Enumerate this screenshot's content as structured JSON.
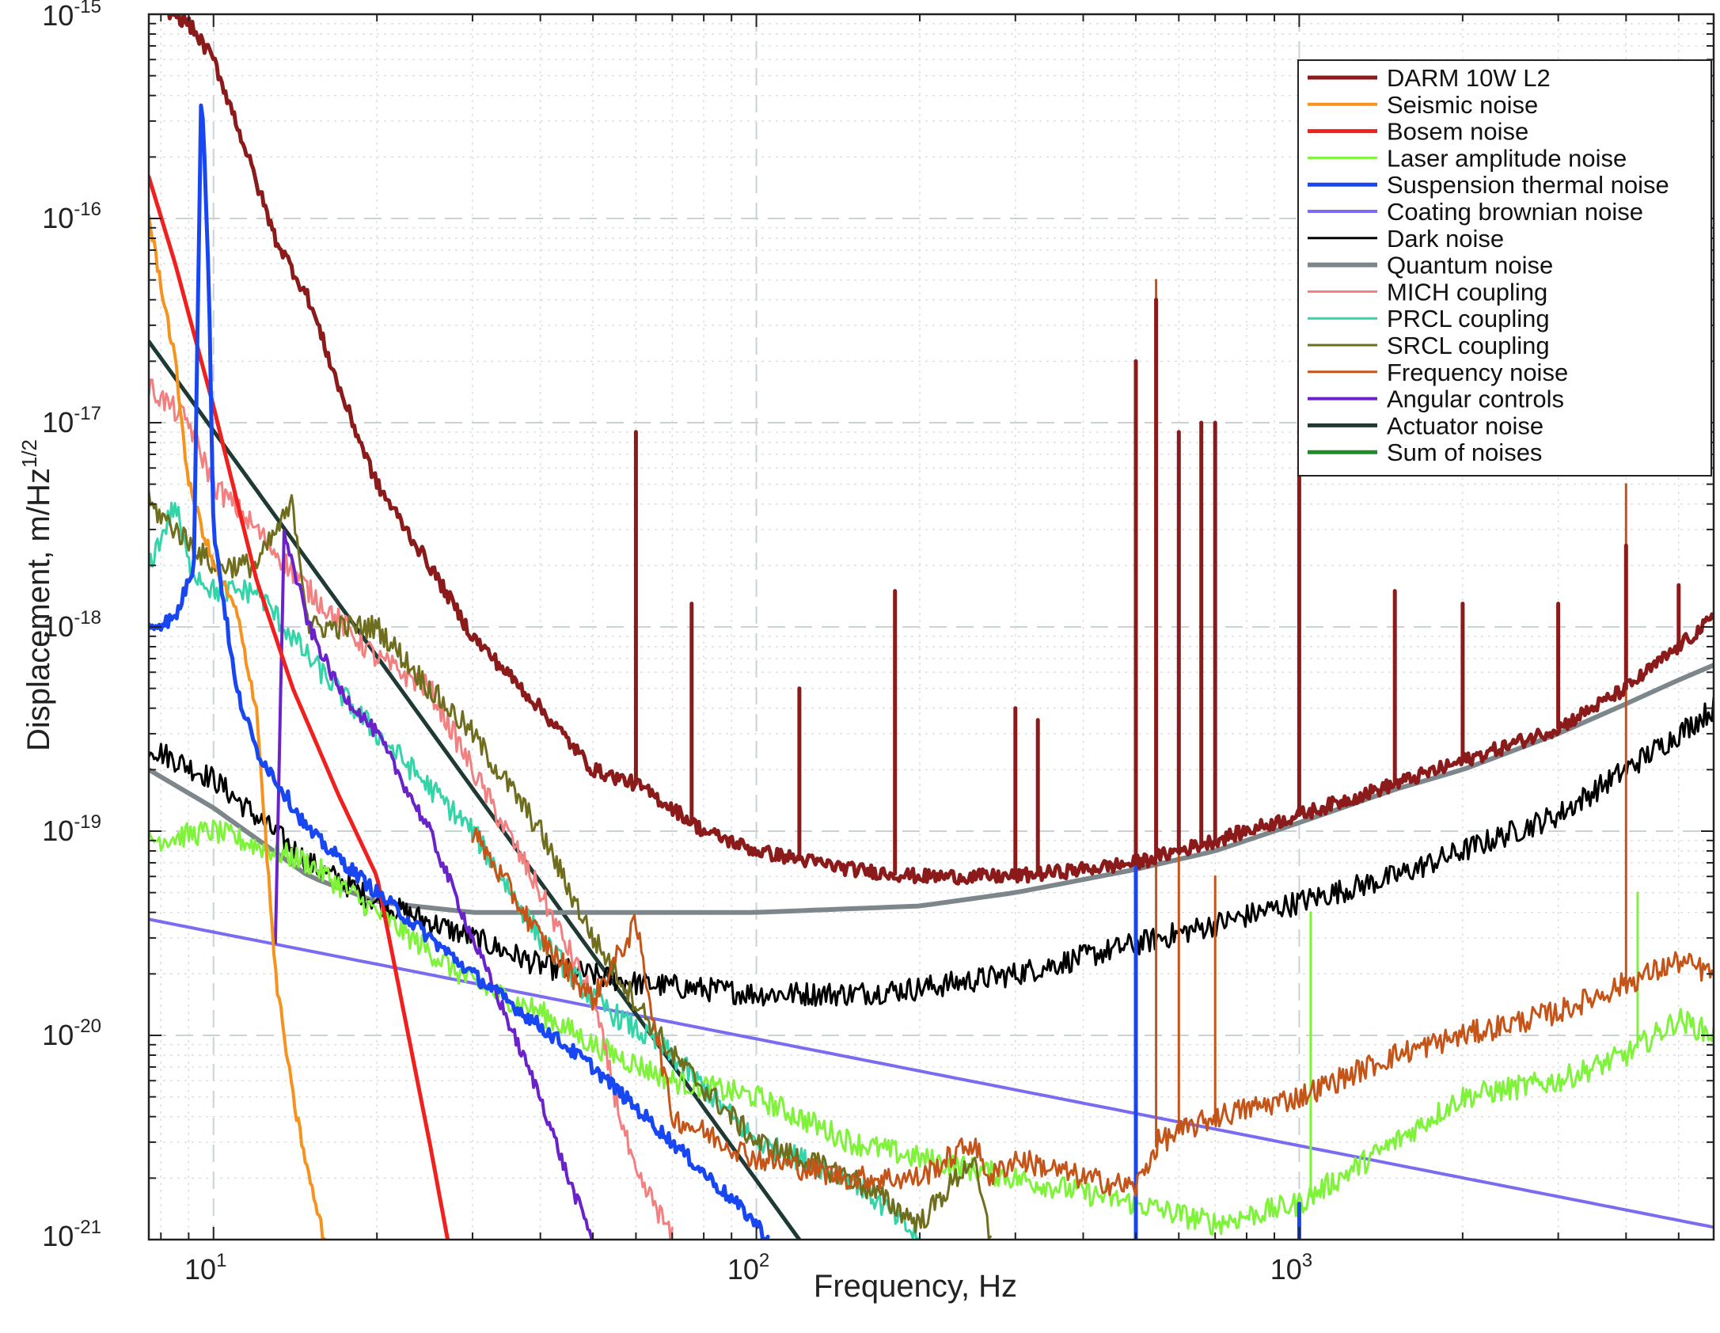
{
  "chart_data": {
    "type": "line",
    "title": "",
    "xlabel": "Frequency, Hz",
    "ylabel": "Displacement, m/Hz",
    "ylabel_exponent": "1/2",
    "xscale": "log",
    "yscale": "log",
    "xlim": [
      7.6,
      5800
    ],
    "ylim": [
      1e-21,
      1e-15
    ],
    "grid": true,
    "legend_position": "top-right",
    "x_ticks": [
      {
        "value": 10,
        "base": "10",
        "exp": "1"
      },
      {
        "value": 100,
        "base": "10",
        "exp": "2"
      },
      {
        "value": 1000,
        "base": "10",
        "exp": "3"
      }
    ],
    "y_ticks": [
      {
        "value": 1e-21,
        "base": "10",
        "exp": "-21"
      },
      {
        "value": 1e-20,
        "base": "10",
        "exp": "-20"
      },
      {
        "value": 1e-19,
        "base": "10",
        "exp": "-19"
      },
      {
        "value": 1e-18,
        "base": "10",
        "exp": "-18"
      },
      {
        "value": 1e-17,
        "base": "10",
        "exp": "-17"
      },
      {
        "value": 1e-16,
        "base": "10",
        "exp": "-16"
      },
      {
        "value": 1e-15,
        "base": "10",
        "exp": "-15"
      }
    ],
    "series": [
      {
        "name": "DARM  10W L2",
        "color": "#8b1a1a",
        "width": 5,
        "points": [
          [
            7.6,
            1.2e-15
          ],
          [
            9,
            9e-16
          ],
          [
            10,
            6e-16
          ],
          [
            11,
            3e-16
          ],
          [
            12,
            1.5e-16
          ],
          [
            13,
            8e-17
          ],
          [
            15,
            4e-17
          ],
          [
            17,
            1.5e-17
          ],
          [
            20,
            5e-18
          ],
          [
            25,
            2e-18
          ],
          [
            30,
            9e-19
          ],
          [
            40,
            4e-19
          ],
          [
            50,
            2e-19
          ],
          [
            60,
            1.7e-19
          ],
          [
            70,
            1.3e-19
          ],
          [
            80,
            1e-19
          ],
          [
            100,
            8e-20
          ],
          [
            150,
            6.5e-20
          ],
          [
            200,
            6e-20
          ],
          [
            300,
            6e-20
          ],
          [
            400,
            6.5e-20
          ],
          [
            500,
            7e-20
          ],
          [
            700,
            9e-20
          ],
          [
            1000,
            1.2e-19
          ],
          [
            1500,
            1.7e-19
          ],
          [
            2000,
            2.2e-19
          ],
          [
            3000,
            3.2e-19
          ],
          [
            4000,
            5e-19
          ],
          [
            5000,
            8e-19
          ],
          [
            5800,
            1.1e-18
          ]
        ],
        "peaks": [
          [
            60,
            9e-18
          ],
          [
            76,
            1.3e-18
          ],
          [
            120,
            5e-19
          ],
          [
            180,
            1.5e-18
          ],
          [
            300,
            4e-19
          ],
          [
            330,
            3.5e-19
          ],
          [
            500,
            2e-17
          ],
          [
            545,
            4e-17
          ],
          [
            600,
            9e-18
          ],
          [
            660,
            1e-17
          ],
          [
            700,
            1e-17
          ],
          [
            1000,
            1.8e-17
          ],
          [
            1500,
            1.5e-18
          ],
          [
            2000,
            1.3e-18
          ],
          [
            3000,
            1.3e-18
          ],
          [
            4000,
            2.5e-18
          ],
          [
            5000,
            1.6e-18
          ]
        ]
      },
      {
        "name": "Seismic noise",
        "color": "#f5931e",
        "width": 4,
        "points": [
          [
            7.6,
            1e-16
          ],
          [
            8.5,
            2e-17
          ],
          [
            9,
            5e-18
          ],
          [
            10,
            2e-18
          ],
          [
            11,
            1.2e-18
          ],
          [
            12,
            4e-19
          ],
          [
            13,
            2e-20
          ],
          [
            14,
            5e-21
          ],
          [
            15,
            2e-21
          ],
          [
            16,
            1e-21
          ]
        ]
      },
      {
        "name": "Bosem noise",
        "color": "#f0201f",
        "width": 5,
        "points": [
          [
            7.6,
            1.6e-16
          ],
          [
            8.5,
            6e-17
          ],
          [
            10,
            1.2e-17
          ],
          [
            12,
            1.7e-18
          ],
          [
            14,
            5e-19
          ],
          [
            17,
            1.5e-19
          ],
          [
            20,
            6e-20
          ],
          [
            25,
            3e-21
          ],
          [
            27,
            1e-21
          ]
        ]
      },
      {
        "name": "Laser amplitude noise",
        "color": "#7ff23a",
        "width": 3,
        "points": [
          [
            7.6,
            9e-20
          ],
          [
            10,
            1e-19
          ],
          [
            15,
            7e-20
          ],
          [
            20,
            4e-20
          ],
          [
            30,
            1.8e-20
          ],
          [
            40,
            1.3e-20
          ],
          [
            50,
            9e-21
          ],
          [
            70,
            6e-21
          ],
          [
            100,
            5e-21
          ],
          [
            150,
            3e-21
          ],
          [
            200,
            2.5e-21
          ],
          [
            300,
            2e-21
          ],
          [
            500,
            1.5e-21
          ],
          [
            700,
            1.2e-21
          ],
          [
            1000,
            1.5e-21
          ],
          [
            1500,
            3e-21
          ],
          [
            2000,
            5e-21
          ],
          [
            3000,
            6e-21
          ],
          [
            4000,
            8e-21
          ],
          [
            5000,
            1.2e-20
          ],
          [
            5800,
            1e-20
          ]
        ],
        "peaks": [
          [
            1050,
            4e-20
          ],
          [
            4200,
            5e-20
          ]
        ]
      },
      {
        "name": "Suspension thermal noise",
        "color": "#1846f0",
        "width": 5,
        "points": [
          [
            7.6,
            1e-18
          ],
          [
            8.5,
            1.1e-18
          ],
          [
            9.2,
            2e-18
          ],
          [
            9.5,
            5e-16
          ],
          [
            9.8,
            5e-17
          ],
          [
            10,
            3e-18
          ],
          [
            11,
            5e-19
          ],
          [
            12,
            2.5e-19
          ],
          [
            15,
            1e-19
          ],
          [
            20,
            5e-20
          ],
          [
            30,
            2e-20
          ],
          [
            50,
            7e-21
          ],
          [
            70,
            3e-21
          ],
          [
            100,
            1.2e-21
          ],
          [
            105,
            1e-21
          ]
        ],
        "peaks": [
          [
            500,
            1.1e-19
          ],
          [
            1000,
            1.5e-21
          ]
        ]
      },
      {
        "name": "Coating brownian noise",
        "color": "#7a6cf0",
        "width": 4,
        "points": [
          [
            7.6,
            3.7e-20
          ],
          [
            5800,
            1.15e-21
          ]
        ]
      },
      {
        "name": "Dark noise",
        "color": "#000000",
        "width": 3,
        "points": [
          [
            7.6,
            2.6e-19
          ],
          [
            10,
            1.8e-19
          ],
          [
            15,
            7e-20
          ],
          [
            20,
            4.5e-20
          ],
          [
            30,
            3e-20
          ],
          [
            40,
            2.2e-20
          ],
          [
            60,
            1.8e-20
          ],
          [
            100,
            1.6e-20
          ],
          [
            150,
            1.6e-20
          ],
          [
            200,
            1.7e-20
          ],
          [
            300,
            2e-20
          ],
          [
            500,
            2.8e-20
          ],
          [
            700,
            3.5e-20
          ],
          [
            1000,
            4.5e-20
          ],
          [
            1500,
            6e-20
          ],
          [
            2000,
            8e-20
          ],
          [
            3000,
            1.2e-19
          ],
          [
            4000,
            2e-19
          ],
          [
            5000,
            3e-19
          ],
          [
            5800,
            4e-19
          ]
        ]
      },
      {
        "name": "Quantum noise",
        "color": "#7d868b",
        "width": 6,
        "points": [
          [
            7.6,
            2e-19
          ],
          [
            10,
            1.3e-19
          ],
          [
            15,
            6e-20
          ],
          [
            20,
            4.5e-20
          ],
          [
            30,
            4e-20
          ],
          [
            50,
            4e-20
          ],
          [
            100,
            4e-20
          ],
          [
            200,
            4.3e-20
          ],
          [
            300,
            5e-20
          ],
          [
            500,
            6.5e-20
          ],
          [
            700,
            8e-20
          ],
          [
            1000,
            1.1e-19
          ],
          [
            1500,
            1.6e-19
          ],
          [
            2000,
            2e-19
          ],
          [
            3000,
            3e-19
          ],
          [
            4000,
            4.2e-19
          ],
          [
            5000,
            5.5e-19
          ],
          [
            5800,
            6.5e-19
          ]
        ]
      },
      {
        "name": "MICH coupling",
        "color": "#f28080",
        "width": 3,
        "points": [
          [
            7.6,
            1.5e-17
          ],
          [
            9,
            1e-17
          ],
          [
            10,
            5e-18
          ],
          [
            12,
            3e-18
          ],
          [
            15,
            1.5e-18
          ],
          [
            20,
            7e-19
          ],
          [
            25,
            5e-19
          ],
          [
            30,
            2e-19
          ],
          [
            40,
            5e-20
          ],
          [
            50,
            1.5e-20
          ],
          [
            55,
            5e-21
          ],
          [
            60,
            2e-21
          ],
          [
            65,
            1.5e-21
          ],
          [
            70,
            1e-21
          ]
        ]
      },
      {
        "name": "PRCL coupling",
        "color": "#32d4a8",
        "width": 3,
        "points": [
          [
            7.6,
            2e-18
          ],
          [
            8.5,
            4e-18
          ],
          [
            9,
            2e-18
          ],
          [
            10,
            1.5e-18
          ],
          [
            12,
            1.5e-18
          ],
          [
            15,
            7e-19
          ],
          [
            20,
            3e-19
          ],
          [
            30,
            1e-19
          ],
          [
            40,
            3e-20
          ],
          [
            50,
            1.5e-20
          ],
          [
            70,
            8e-21
          ],
          [
            100,
            3e-21
          ],
          [
            150,
            2e-21
          ],
          [
            200,
            1e-21
          ]
        ]
      },
      {
        "name": "SRCL coupling",
        "color": "#6e6e1e",
        "width": 3,
        "points": [
          [
            7.6,
            4e-18
          ],
          [
            10,
            2e-18
          ],
          [
            12,
            2e-18
          ],
          [
            14,
            4e-18
          ],
          [
            15,
            1e-18
          ],
          [
            20,
            1e-18
          ],
          [
            25,
            5e-19
          ],
          [
            30,
            3e-19
          ],
          [
            40,
            1e-19
          ],
          [
            50,
            3e-20
          ],
          [
            70,
            8e-21
          ],
          [
            100,
            3e-21
          ],
          [
            150,
            2e-21
          ],
          [
            200,
            1.2e-21
          ],
          [
            250,
            2.5e-21
          ],
          [
            270,
            1e-21
          ]
        ]
      },
      {
        "name": "Frequency noise",
        "color": "#c45418",
        "width": 3,
        "points": [
          [
            30,
            1e-19
          ],
          [
            40,
            3e-20
          ],
          [
            50,
            1.5e-20
          ],
          [
            60,
            3.5e-20
          ],
          [
            70,
            4e-21
          ],
          [
            100,
            2.5e-21
          ],
          [
            150,
            2e-21
          ],
          [
            200,
            2e-21
          ],
          [
            250,
            3e-21
          ],
          [
            270,
            2e-21
          ],
          [
            300,
            2.5e-21
          ],
          [
            400,
            2e-21
          ],
          [
            500,
            1.8e-21
          ],
          [
            550,
            3e-21
          ],
          [
            700,
            4e-21
          ],
          [
            1000,
            5e-21
          ],
          [
            1500,
            8e-21
          ],
          [
            2000,
            1e-20
          ],
          [
            3000,
            1.3e-20
          ],
          [
            4000,
            1.8e-20
          ],
          [
            5000,
            2.3e-20
          ],
          [
            5800,
            2e-20
          ]
        ],
        "peaks": [
          [
            545,
            5e-17
          ],
          [
            600,
            8e-20
          ],
          [
            700,
            6e-20
          ],
          [
            4000,
            5e-18
          ]
        ]
      },
      {
        "name": "Angular controls",
        "color": "#6a22c9",
        "width": 4,
        "points": [
          [
            13,
            3e-20
          ],
          [
            13.5,
            3e-18
          ],
          [
            14,
            2e-18
          ],
          [
            15,
            1e-18
          ],
          [
            17,
            5e-19
          ],
          [
            20,
            3e-19
          ],
          [
            25,
            1e-19
          ],
          [
            30,
            3e-20
          ],
          [
            40,
            5e-21
          ],
          [
            45,
            2e-21
          ],
          [
            50,
            1e-21
          ]
        ]
      },
      {
        "name": "Actuator noise",
        "color": "#1f3a34",
        "width": 5,
        "points": [
          [
            7.6,
            2.5e-17
          ],
          [
            120,
            1e-21
          ]
        ]
      },
      {
        "name": "Sum of noises",
        "color": "#1e8c28",
        "width": 5,
        "points": [
          [
            7.6,
            9e-16
          ],
          [
            8.5,
            1e-15
          ],
          [
            9,
            6e-16
          ],
          [
            10,
            3e-16
          ],
          [
            11,
            2e-16
          ],
          [
            12,
            6e-17
          ],
          [
            13,
            4e-17
          ],
          [
            15,
            1.5e-17
          ],
          [
            17,
            7e-18
          ],
          [
            20,
            4e-18
          ],
          [
            30,
            6e-19
          ],
          [
            40,
            2e-19
          ],
          [
            50,
            1e-19
          ],
          [
            60,
            7e-20
          ],
          [
            70,
            5.5e-20
          ],
          [
            100,
            4.5e-20
          ],
          [
            200,
            4.5e-20
          ],
          [
            300,
            5e-20
          ],
          [
            500,
            6.5e-20
          ],
          [
            700,
            8e-20
          ],
          [
            1000,
            1.1e-19
          ],
          [
            1500,
            1.6e-19
          ],
          [
            2000,
            2.1e-19
          ],
          [
            3000,
            3.1e-19
          ],
          [
            4000,
            4.4e-19
          ],
          [
            5000,
            6e-19
          ],
          [
            5800,
            7.5e-19
          ]
        ],
        "peaks": [
          [
            545,
            3e-17
          ]
        ]
      }
    ]
  }
}
